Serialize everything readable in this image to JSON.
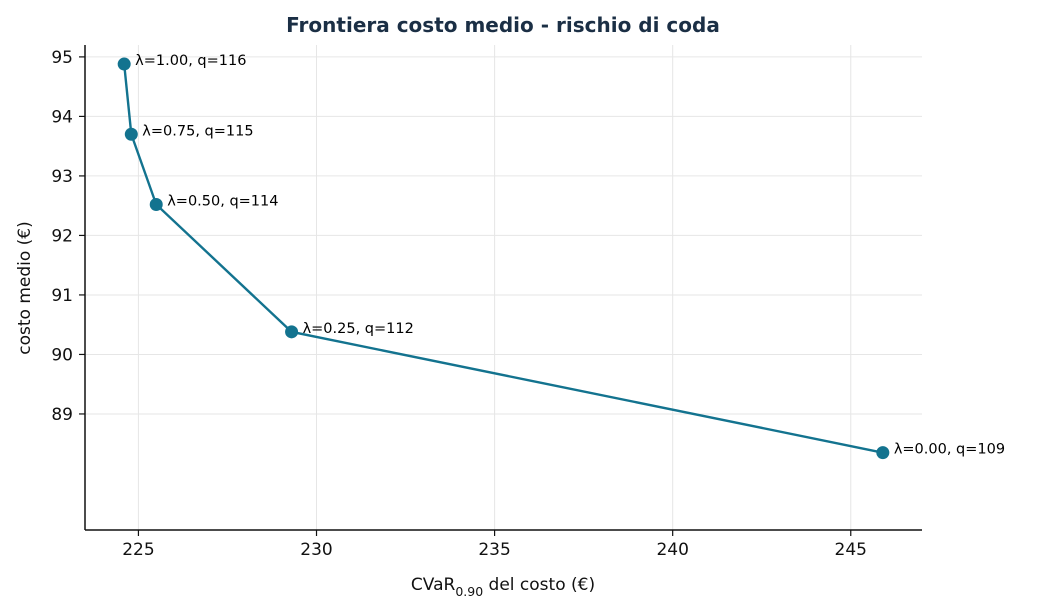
{
  "chart_data": {
    "type": "line",
    "title": "Frontiera costo medio - rischio di coda",
    "xlabel": {
      "main": "CVaR",
      "subscript": "0.90",
      "suffix": " del costo (€)"
    },
    "ylabel": "costo medio (€)",
    "xlim": [
      223.5,
      247.0
    ],
    "ylim": [
      87.05,
      95.2
    ],
    "xticks": [
      225,
      230,
      235,
      240,
      245
    ],
    "yticks": [
      89,
      90,
      91,
      92,
      93,
      94,
      95
    ],
    "grid": true,
    "series": [
      {
        "color": "#13738f",
        "points": [
          {
            "x": 224.6,
            "y": 94.88,
            "label": "λ=1.00, q=116"
          },
          {
            "x": 224.8,
            "y": 93.7,
            "label": "λ=0.75, q=115"
          },
          {
            "x": 225.5,
            "y": 92.52,
            "label": "λ=0.50, q=114"
          },
          {
            "x": 229.3,
            "y": 90.38,
            "label": "λ=0.25, q=112"
          },
          {
            "x": 245.9,
            "y": 88.35,
            "label": "λ=0.00, q=109"
          }
        ]
      }
    ]
  }
}
